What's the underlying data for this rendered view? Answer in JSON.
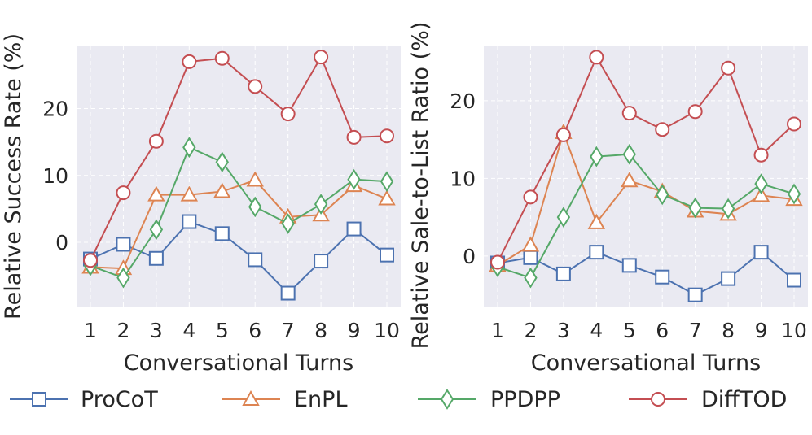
{
  "chart_data": [
    {
      "type": "line",
      "title": "",
      "xlabel": "Conversational Turns",
      "ylabel": "Relative Success Rate (%)",
      "x": [
        1,
        2,
        3,
        4,
        5,
        6,
        7,
        8,
        9,
        10
      ],
      "xticks": [
        "1",
        "2",
        "3",
        "4",
        "5",
        "6",
        "7",
        "8",
        "9",
        "10"
      ],
      "yticks": [
        0,
        10,
        20
      ],
      "ylim": [
        -9.6,
        29.3
      ],
      "grid": true,
      "series": [
        {
          "name": "ProCoT",
          "values": [
            -2.5,
            -0.3,
            -2.4,
            3.1,
            1.3,
            -2.6,
            -7.6,
            -2.8,
            2.0,
            -1.9
          ]
        },
        {
          "name": "EnPL",
          "values": [
            -3.7,
            -3.9,
            7.1,
            7.1,
            7.6,
            9.3,
            3.8,
            4.1,
            8.5,
            6.5
          ]
        },
        {
          "name": "PPDPP",
          "values": [
            -3.5,
            -5.3,
            1.9,
            14.2,
            12.0,
            5.3,
            2.8,
            5.7,
            9.4,
            9.1
          ]
        },
        {
          "name": "DiffTOD",
          "values": [
            -2.7,
            7.4,
            15.1,
            27.0,
            27.5,
            23.3,
            19.2,
            27.7,
            15.7,
            15.9
          ]
        }
      ]
    },
    {
      "type": "line",
      "title": "",
      "xlabel": "Conversational Turns",
      "ylabel": "Relative Sale-to-List Ratio (%)",
      "x": [
        1,
        2,
        3,
        4,
        5,
        6,
        7,
        8,
        9,
        10
      ],
      "xticks": [
        "1",
        "2",
        "3",
        "4",
        "5",
        "6",
        "7",
        "8",
        "9",
        "10"
      ],
      "yticks": [
        0,
        10,
        20
      ],
      "ylim": [
        -6.5,
        27.0
      ],
      "grid": true,
      "series": [
        {
          "name": "ProCoT",
          "values": [
            -0.9,
            -0.2,
            -2.3,
            0.5,
            -1.2,
            -2.7,
            -5.0,
            -2.9,
            0.5,
            -3.1
          ]
        },
        {
          "name": "EnPL",
          "values": [
            -1.2,
            1.4,
            15.9,
            4.3,
            9.7,
            8.3,
            5.8,
            5.4,
            7.8,
            7.3
          ]
        },
        {
          "name": "PPDPP",
          "values": [
            -1.4,
            -2.8,
            5.0,
            12.8,
            13.1,
            7.9,
            6.2,
            6.1,
            9.3,
            8.0
          ]
        },
        {
          "name": "DiffTOD",
          "values": [
            -0.8,
            7.6,
            15.6,
            25.6,
            18.4,
            16.3,
            18.6,
            24.2,
            13.0,
            17.0
          ]
        }
      ]
    }
  ],
  "legend": {
    "items": [
      {
        "name": "ProCoT",
        "color": "#4c72b0",
        "marker": "square"
      },
      {
        "name": "EnPL",
        "color": "#dd8452",
        "marker": "triangle"
      },
      {
        "name": "PPDPP",
        "color": "#55a868",
        "marker": "diamond"
      },
      {
        "name": "DiffTOD",
        "color": "#c44e52",
        "marker": "circle"
      }
    ]
  }
}
